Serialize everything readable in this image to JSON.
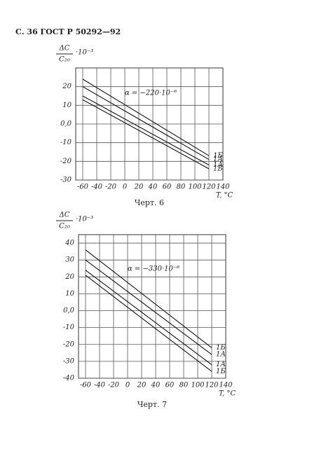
{
  "header": "С. 36 ГОСТ Р 50292—92",
  "chart_data": [
    {
      "type": "line",
      "caption": "Черт. 6",
      "ylabel": {
        "numerator": "ΔC",
        "denominator": "C₂₀",
        "factor": "·10⁻³"
      },
      "xlabel": "T, °C",
      "annotation": "α = −220·10⁻⁶",
      "x": [
        -60,
        120
      ],
      "series": [
        {
          "name": "1Б",
          "color": "#111",
          "values": [
            24,
            -17
          ]
        },
        {
          "name": "1А",
          "color": "#111",
          "values": [
            20,
            -19
          ]
        },
        {
          "name": "1А",
          "color": "#111",
          "values": [
            15,
            -22
          ]
        },
        {
          "name": "1Б",
          "color": "#111",
          "values": [
            13,
            -24
          ]
        }
      ],
      "xlim": [
        -70,
        140
      ],
      "xticks": [
        -60,
        -40,
        -20,
        0,
        20,
        40,
        60,
        80,
        100,
        120,
        140
      ],
      "ylim": [
        -30,
        30
      ],
      "yticks": [
        20,
        10,
        {
          "value": 0,
          "label": "0,0"
        },
        -10,
        -20,
        -30
      ],
      "grid": true
    },
    {
      "type": "line",
      "caption": "Черт. 7",
      "ylabel": {
        "numerator": "ΔC",
        "denominator": "C₂₀",
        "factor": "·10⁻³"
      },
      "xlabel": "T, °C",
      "annotation": "α = −330·10⁻⁶",
      "x": [
        -60,
        120
      ],
      "series": [
        {
          "name": "1Б",
          "color": "#111",
          "values": [
            36,
            -22
          ]
        },
        {
          "name": "1А",
          "color": "#111",
          "values": [
            30,
            -26
          ]
        },
        {
          "name": "1А",
          "color": "#111",
          "values": [
            24,
            -32
          ]
        },
        {
          "name": "1Б",
          "color": "#111",
          "values": [
            21,
            -36
          ]
        }
      ],
      "xlim": [
        -70,
        140
      ],
      "xticks": [
        -60,
        -40,
        -20,
        0,
        20,
        40,
        60,
        80,
        100,
        120,
        140
      ],
      "ylim": [
        -40,
        45
      ],
      "yticks": [
        40,
        30,
        20,
        10,
        {
          "value": 0,
          "label": "0,0"
        },
        -10,
        -20,
        -30,
        -40
      ],
      "grid": true
    }
  ]
}
